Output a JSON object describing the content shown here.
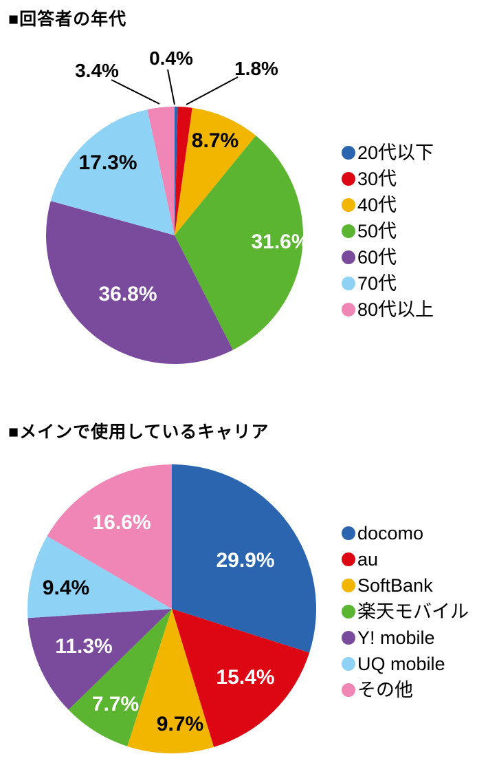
{
  "chart_data": [
    {
      "type": "pie",
      "title": "■回答者の年代",
      "legend_position": "right",
      "start_angle_deg": 0,
      "direction": "clockwise",
      "slices": [
        {
          "label": "20代以下",
          "value": 0.4,
          "display": "0.4%",
          "color": "#2b65b0",
          "label_color": "#000000",
          "label_placement": "outside"
        },
        {
          "label": "30代",
          "value": 1.8,
          "display": "1.8%",
          "color": "#dd0713",
          "label_color": "#000000",
          "label_placement": "outside"
        },
        {
          "label": "40代",
          "value": 8.7,
          "display": "8.7%",
          "color": "#f2b500",
          "label_color": "#000000",
          "label_placement": "inside"
        },
        {
          "label": "50代",
          "value": 31.6,
          "display": "31.6%",
          "color": "#5cb531",
          "label_color": "#ffffff",
          "label_placement": "inside"
        },
        {
          "label": "60代",
          "value": 36.8,
          "display": "36.8%",
          "color": "#7a4b9d",
          "label_color": "#ffffff",
          "label_placement": "inside"
        },
        {
          "label": "70代",
          "value": 17.3,
          "display": "17.3%",
          "color": "#8ed3f6",
          "label_color": "#000000",
          "label_placement": "inside"
        },
        {
          "label": "80代以上",
          "value": 3.4,
          "display": "3.4%",
          "color": "#ef86b5",
          "label_color": "#000000",
          "label_placement": "outside"
        }
      ]
    },
    {
      "type": "pie",
      "title": "■メインで使用しているキャリア",
      "legend_position": "right",
      "start_angle_deg": 0,
      "direction": "clockwise",
      "slices": [
        {
          "label": "docomo",
          "value": 29.9,
          "display": "29.9%",
          "color": "#2b65b0",
          "label_color": "#ffffff",
          "label_placement": "inside"
        },
        {
          "label": "au",
          "value": 15.4,
          "display": "15.4%",
          "color": "#dd0713",
          "label_color": "#ffffff",
          "label_placement": "inside"
        },
        {
          "label": "SoftBank",
          "value": 9.7,
          "display": "9.7%",
          "color": "#f2b500",
          "label_color": "#000000",
          "label_placement": "inside"
        },
        {
          "label": "楽天モバイル",
          "value": 7.7,
          "display": "7.7%",
          "color": "#5cb531",
          "label_color": "#ffffff",
          "label_placement": "inside"
        },
        {
          "label": "Y! mobile",
          "value": 11.3,
          "display": "11.3%",
          "color": "#7a4b9d",
          "label_color": "#ffffff",
          "label_placement": "inside"
        },
        {
          "label": "UQ mobile",
          "value": 9.4,
          "display": "9.4%",
          "color": "#8ed3f6",
          "label_color": "#000000",
          "label_placement": "inside"
        },
        {
          "label": "その他",
          "value": 16.6,
          "display": "16.6%",
          "color": "#ef86b5",
          "label_color": "#ffffff",
          "label_placement": "inside"
        }
      ]
    }
  ]
}
